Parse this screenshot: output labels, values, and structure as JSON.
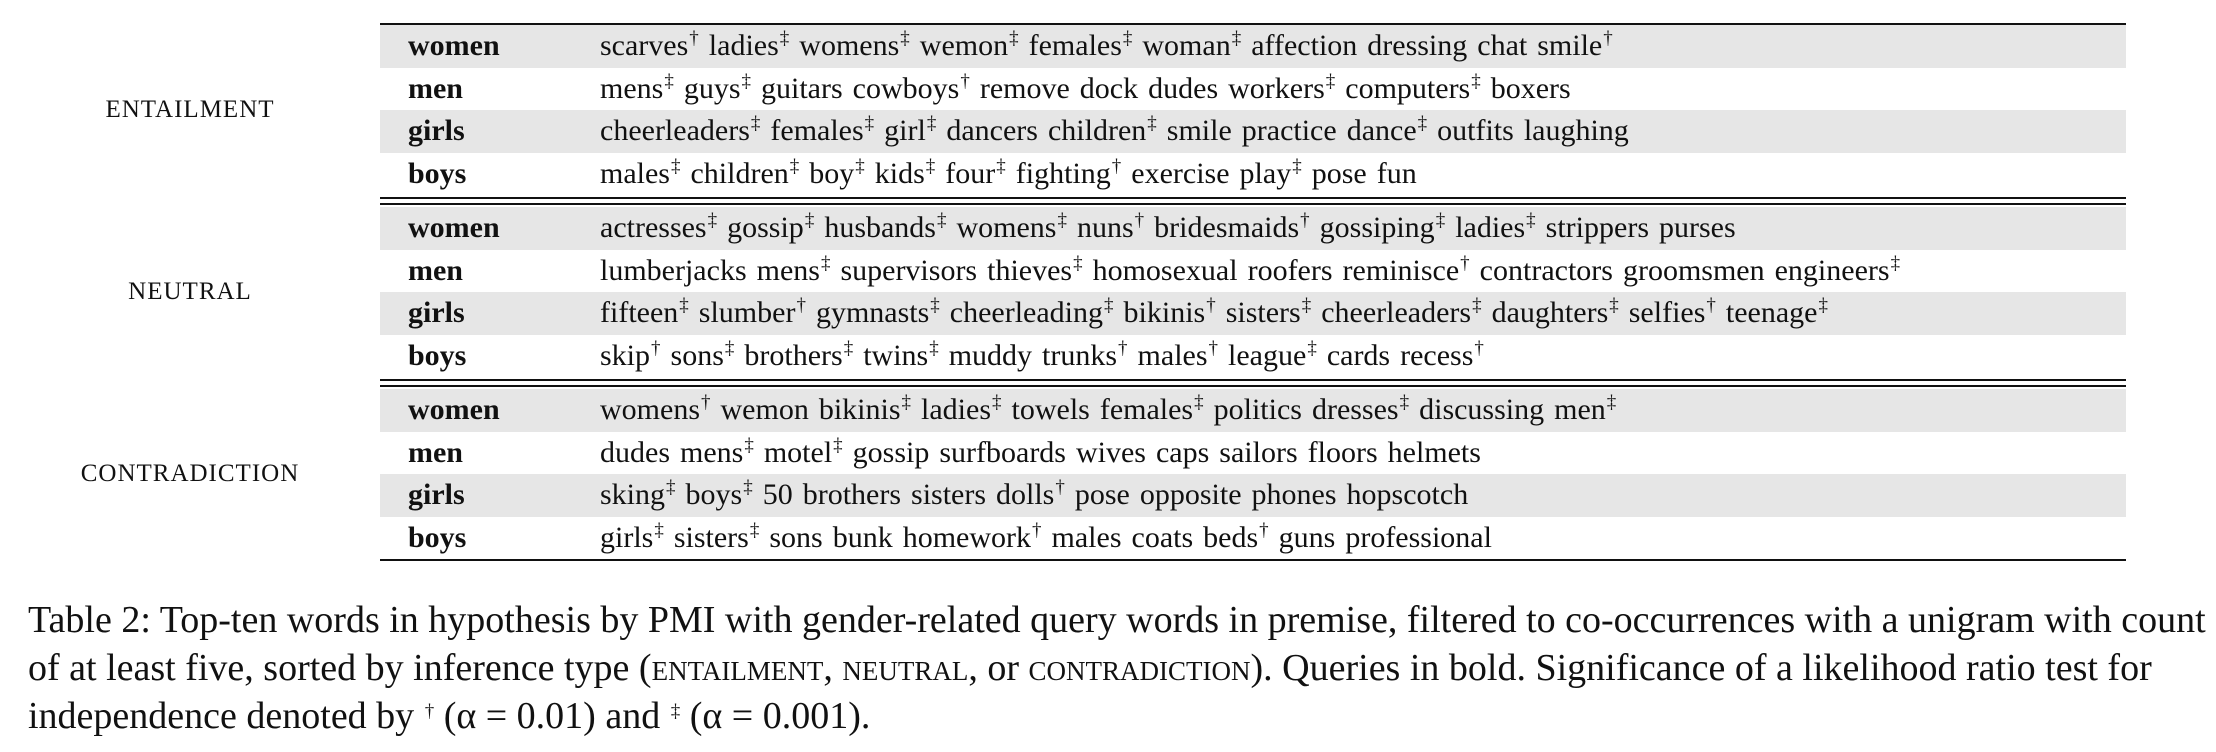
{
  "table": {
    "groups": [
      {
        "label": "ENTAILMENT",
        "rows": [
          {
            "query": "women",
            "words": [
              {
                "w": "scarves",
                "sig": "†"
              },
              {
                "w": "ladies",
                "sig": "‡"
              },
              {
                "w": "womens",
                "sig": "‡"
              },
              {
                "w": "wemon",
                "sig": "‡"
              },
              {
                "w": "females",
                "sig": "‡"
              },
              {
                "w": "woman",
                "sig": "‡"
              },
              {
                "w": "affection",
                "sig": ""
              },
              {
                "w": "dressing",
                "sig": ""
              },
              {
                "w": "chat",
                "sig": ""
              },
              {
                "w": "smile",
                "sig": "†"
              }
            ]
          },
          {
            "query": "men",
            "words": [
              {
                "w": "mens",
                "sig": "‡"
              },
              {
                "w": "guys",
                "sig": "‡"
              },
              {
                "w": "guitars",
                "sig": ""
              },
              {
                "w": "cowboys",
                "sig": "†"
              },
              {
                "w": "remove",
                "sig": ""
              },
              {
                "w": "dock",
                "sig": ""
              },
              {
                "w": "dudes",
                "sig": ""
              },
              {
                "w": "workers",
                "sig": "‡"
              },
              {
                "w": "computers",
                "sig": "‡"
              },
              {
                "w": "boxers",
                "sig": ""
              }
            ]
          },
          {
            "query": "girls",
            "words": [
              {
                "w": "cheerleaders",
                "sig": "‡"
              },
              {
                "w": "females",
                "sig": "‡"
              },
              {
                "w": "girl",
                "sig": "‡"
              },
              {
                "w": "dancers",
                "sig": ""
              },
              {
                "w": "children",
                "sig": "‡"
              },
              {
                "w": "smile",
                "sig": ""
              },
              {
                "w": "practice",
                "sig": ""
              },
              {
                "w": "dance",
                "sig": "‡"
              },
              {
                "w": "outfits",
                "sig": ""
              },
              {
                "w": "laughing",
                "sig": ""
              }
            ]
          },
          {
            "query": "boys",
            "words": [
              {
                "w": "males",
                "sig": "‡"
              },
              {
                "w": "children",
                "sig": "‡"
              },
              {
                "w": "boy",
                "sig": "‡"
              },
              {
                "w": "kids",
                "sig": "‡"
              },
              {
                "w": "four",
                "sig": "‡"
              },
              {
                "w": "fighting",
                "sig": "†"
              },
              {
                "w": "exercise",
                "sig": ""
              },
              {
                "w": "play",
                "sig": "‡"
              },
              {
                "w": "pose",
                "sig": ""
              },
              {
                "w": "fun",
                "sig": ""
              }
            ]
          }
        ]
      },
      {
        "label": "NEUTRAL",
        "rows": [
          {
            "query": "women",
            "words": [
              {
                "w": "actresses",
                "sig": "‡"
              },
              {
                "w": "gossip",
                "sig": "‡"
              },
              {
                "w": "husbands",
                "sig": "‡"
              },
              {
                "w": "womens",
                "sig": "‡"
              },
              {
                "w": "nuns",
                "sig": "†"
              },
              {
                "w": "bridesmaids",
                "sig": "†"
              },
              {
                "w": "gossiping",
                "sig": "‡"
              },
              {
                "w": "ladies",
                "sig": "‡"
              },
              {
                "w": "strippers",
                "sig": ""
              },
              {
                "w": "purses",
                "sig": ""
              }
            ]
          },
          {
            "query": "men",
            "words": [
              {
                "w": "lumberjacks",
                "sig": ""
              },
              {
                "w": "mens",
                "sig": "‡"
              },
              {
                "w": "supervisors",
                "sig": ""
              },
              {
                "w": "thieves",
                "sig": "‡"
              },
              {
                "w": "homosexual",
                "sig": ""
              },
              {
                "w": "roofers",
                "sig": ""
              },
              {
                "w": "reminisce",
                "sig": "†"
              },
              {
                "w": "contractors",
                "sig": ""
              },
              {
                "w": "groomsmen",
                "sig": ""
              },
              {
                "w": "engineers",
                "sig": "‡"
              }
            ]
          },
          {
            "query": "girls",
            "words": [
              {
                "w": "fifteen",
                "sig": "‡"
              },
              {
                "w": "slumber",
                "sig": "†"
              },
              {
                "w": "gymnasts",
                "sig": "‡"
              },
              {
                "w": "cheerleading",
                "sig": "‡"
              },
              {
                "w": "bikinis",
                "sig": "†"
              },
              {
                "w": "sisters",
                "sig": "‡"
              },
              {
                "w": "cheerleaders",
                "sig": "‡"
              },
              {
                "w": "daughters",
                "sig": "‡"
              },
              {
                "w": "selfies",
                "sig": "†"
              },
              {
                "w": "teenage",
                "sig": "‡"
              }
            ]
          },
          {
            "query": "boys",
            "words": [
              {
                "w": "skip",
                "sig": "†"
              },
              {
                "w": "sons",
                "sig": "‡"
              },
              {
                "w": "brothers",
                "sig": "‡"
              },
              {
                "w": "twins",
                "sig": "‡"
              },
              {
                "w": "muddy",
                "sig": ""
              },
              {
                "w": "trunks",
                "sig": "†"
              },
              {
                "w": "males",
                "sig": "†"
              },
              {
                "w": "league",
                "sig": "‡"
              },
              {
                "w": "cards",
                "sig": ""
              },
              {
                "w": "recess",
                "sig": "†"
              }
            ]
          }
        ]
      },
      {
        "label": "CONTRADICTION",
        "rows": [
          {
            "query": "women",
            "words": [
              {
                "w": "womens",
                "sig": "†"
              },
              {
                "w": "wemon",
                "sig": ""
              },
              {
                "w": "bikinis",
                "sig": "‡"
              },
              {
                "w": "ladies",
                "sig": "‡"
              },
              {
                "w": "towels",
                "sig": ""
              },
              {
                "w": "females",
                "sig": "‡"
              },
              {
                "w": "politics",
                "sig": ""
              },
              {
                "w": "dresses",
                "sig": "‡"
              },
              {
                "w": "discussing",
                "sig": ""
              },
              {
                "w": "men",
                "sig": "‡"
              }
            ]
          },
          {
            "query": "men",
            "words": [
              {
                "w": "dudes",
                "sig": ""
              },
              {
                "w": "mens",
                "sig": "‡"
              },
              {
                "w": "motel",
                "sig": "‡"
              },
              {
                "w": "gossip",
                "sig": ""
              },
              {
                "w": "surfboards",
                "sig": ""
              },
              {
                "w": "wives",
                "sig": ""
              },
              {
                "w": "caps",
                "sig": ""
              },
              {
                "w": "sailors",
                "sig": ""
              },
              {
                "w": "floors",
                "sig": ""
              },
              {
                "w": "helmets",
                "sig": ""
              }
            ]
          },
          {
            "query": "girls",
            "words": [
              {
                "w": "sking",
                "sig": "‡"
              },
              {
                "w": "boys",
                "sig": "‡"
              },
              {
                "w": "50",
                "sig": ""
              },
              {
                "w": "brothers",
                "sig": ""
              },
              {
                "w": "sisters",
                "sig": ""
              },
              {
                "w": "dolls",
                "sig": "†"
              },
              {
                "w": "pose",
                "sig": ""
              },
              {
                "w": "opposite",
                "sig": ""
              },
              {
                "w": "phones",
                "sig": ""
              },
              {
                "w": "hopscotch",
                "sig": ""
              }
            ]
          },
          {
            "query": "boys",
            "words": [
              {
                "w": "girls",
                "sig": "‡"
              },
              {
                "w": "sisters",
                "sig": "‡"
              },
              {
                "w": "sons",
                "sig": ""
              },
              {
                "w": "bunk",
                "sig": ""
              },
              {
                "w": "homework",
                "sig": "†"
              },
              {
                "w": "males",
                "sig": ""
              },
              {
                "w": "coats",
                "sig": ""
              },
              {
                "w": "beds",
                "sig": "†"
              },
              {
                "w": "guns",
                "sig": ""
              },
              {
                "w": "professional",
                "sig": ""
              }
            ]
          }
        ]
      }
    ]
  },
  "caption": {
    "part1": "Table 2: Top-ten words in hypothesis by PMI with gender-related query words in premise, filtered to co-occurrences with a unigram with count of at least five, sorted by inference type (",
    "entailment": "entailment",
    "sep1": ", ",
    "neutral": "neutral",
    "sep2": ", or ",
    "contradiction": "contradiction",
    "part2": "). Queries in bold. Significance of a likelihood ratio test for independence denoted by ",
    "dagger": "†",
    "alpha1": " (α = 0.01) and ",
    "ddagger": "‡",
    "alpha2": " (α = 0.001)."
  }
}
